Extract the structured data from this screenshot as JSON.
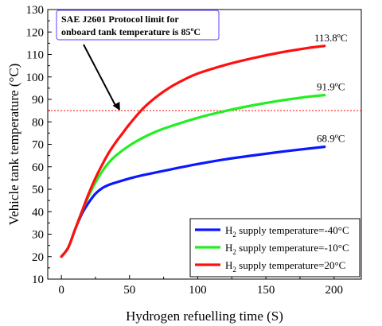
{
  "chart_data": {
    "type": "line",
    "xlabel": "Hydrogen refuelling time (S)",
    "ylabel": "Vehicle tank temperature (°C)",
    "xlim": [
      -10,
      220
    ],
    "ylim": [
      10,
      130
    ],
    "xticks": [
      0,
      50,
      100,
      150,
      200
    ],
    "yticks": [
      10,
      20,
      30,
      40,
      50,
      60,
      70,
      80,
      90,
      100,
      110,
      120,
      130
    ],
    "grid": false,
    "legend_position": "bottom-right",
    "series": [
      {
        "name": "H2 supply temperature=-40°C",
        "legend_main": "H",
        "legend_sub": "2",
        "legend_rest": " supply temperature=-40°C",
        "color": "#0a18ff",
        "end_label": "68.9ºC",
        "x": [
          0,
          5,
          10,
          15,
          20,
          25,
          30,
          35,
          40,
          50,
          60,
          80,
          100,
          120,
          140,
          160,
          180,
          193
        ],
        "y": [
          20,
          24,
          32,
          39,
          44,
          48,
          50.5,
          52,
          53,
          54.8,
          56.3,
          58.8,
          61.2,
          63.3,
          65,
          66.6,
          68,
          68.9
        ]
      },
      {
        "name": "H2 supply temperature=-10°C",
        "legend_main": "H",
        "legend_sub": "2",
        "legend_rest": " supply temperature=-10°C",
        "color": "#22ee22",
        "end_label": "91.9ºC",
        "x": [
          0,
          5,
          10,
          15,
          20,
          25,
          30,
          35,
          40,
          50,
          60,
          70,
          80,
          100,
          120,
          140,
          160,
          180,
          193
        ],
        "y": [
          20,
          24,
          32,
          40,
          47,
          53,
          58,
          62,
          65,
          69.5,
          73,
          75.8,
          78,
          81.8,
          84.8,
          87.3,
          89.4,
          91.1,
          91.9
        ]
      },
      {
        "name": "H2 supply temperature=20°C",
        "legend_main": "H",
        "legend_sub": "2",
        "legend_rest": " supply temperature=20°C",
        "color": "#ff1010",
        "end_label": "113.8ºC",
        "x": [
          0,
          5,
          10,
          15,
          20,
          25,
          30,
          35,
          40,
          45,
          50,
          60,
          70,
          80,
          90,
          100,
          120,
          140,
          160,
          180,
          193
        ],
        "y": [
          20,
          24,
          32,
          40,
          48,
          55,
          61,
          66.5,
          71,
          75,
          79,
          86,
          91.3,
          95.5,
          98.8,
          101.5,
          105.3,
          108.3,
          110.8,
          112.8,
          113.8
        ]
      }
    ],
    "reference_lines": [
      {
        "orientation": "horizontal",
        "y": 85,
        "color": "#ff0000",
        "style": "dotted"
      }
    ],
    "annotations": [
      {
        "text_lines": [
          "SAE J2601 Protocol limit for",
          "onboard tank temperature is 85ºC"
        ],
        "border_color": "#7b5cff",
        "arrow_target": [
          43,
          85
        ]
      }
    ]
  }
}
